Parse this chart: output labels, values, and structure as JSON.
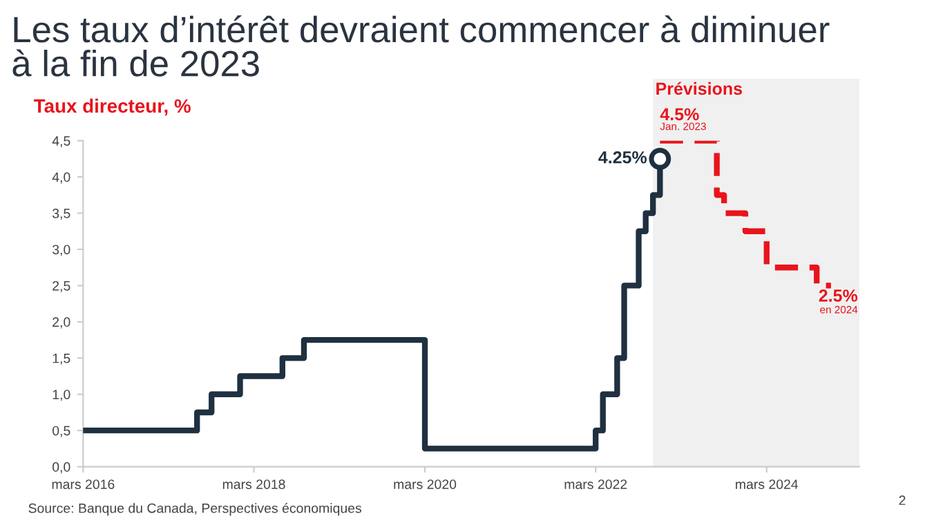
{
  "chart_data": {
    "type": "step",
    "title": "Les taux d’intérêt devraient commencer à diminuer\nà la fin de 2023",
    "ylabel": "Taux directeur, %",
    "series": [
      {
        "color": "#1f3040",
        "x": [
          "2016-03",
          "2017-07",
          "2017-09",
          "2018-01",
          "2018-07",
          "2018-10",
          "2020-03",
          "2022-03",
          "2022-04",
          "2022-06",
          "2022-07",
          "2022-09",
          "2022-10",
          "2022-11",
          "2022-12"
        ],
        "values": [
          0.5,
          0.75,
          1.0,
          1.25,
          1.5,
          1.75,
          0.25,
          0.5,
          1.0,
          1.5,
          2.5,
          3.25,
          3.5,
          3.75,
          4.25
        ]
      },
      {
        "type": "scatter",
        "color": "#1f3040",
        "marker": "circle",
        "x": [
          "2022-12"
        ],
        "values": [
          4.25
        ],
        "value_labels": [
          "4.25%"
        ]
      },
      {
        "color": "#e8141c",
        "line_style": "dashed",
        "x": [
          "2022-12",
          "2023-08",
          "2023-09",
          "2023-12",
          "2024-03",
          "2024-10",
          "2024-12"
        ],
        "values": [
          4.5,
          3.75,
          3.5,
          3.25,
          2.75,
          2.5,
          2.5
        ]
      }
    ],
    "bands": [
      {
        "axis": "x",
        "from": "2022-11",
        "to": "2025-04",
        "label": "Prévisions",
        "color": "#f0f0f0"
      }
    ],
    "annotations": [
      {
        "text": "4.5%",
        "x": "2022-12",
        "y": 4.5
      },
      {
        "text": "Jan. 2023",
        "x": "2022-12",
        "y": 4.5
      },
      {
        "text": "2.5%",
        "x": "2024-12",
        "y": 2.5
      },
      {
        "text": "en 2024",
        "x": "2024-12",
        "y": 2.5
      },
      "Source: Banque du Canada, Perspectives économiques",
      "2"
    ],
    "xlim": [
      "2016-03",
      "2025-04"
    ],
    "xticks": [
      {
        "value": "2016-03",
        "label": "mars 2016"
      },
      {
        "value": "2018-03",
        "label": "mars 2018"
      },
      {
        "value": "2020-03",
        "label": "mars 2020"
      },
      {
        "value": "2022-03",
        "label": "mars 2022"
      },
      {
        "value": "2024-03",
        "label": "mars 2024"
      }
    ],
    "ylim": [
      0,
      4.5
    ],
    "yticks": [
      {
        "value": 0,
        "label": "0,0"
      },
      {
        "value": 0.5,
        "label": "0,5"
      },
      {
        "value": 1,
        "label": "1,0"
      },
      {
        "value": 1.5,
        "label": "1,5"
      },
      {
        "value": 2,
        "label": "2,0"
      },
      {
        "value": 2.5,
        "label": "2,5"
      },
      {
        "value": 3,
        "label": "3,0"
      },
      {
        "value": 3.5,
        "label": "3,5"
      },
      {
        "value": 4,
        "label": "4,0"
      },
      {
        "value": 4.5,
        "label": "4,5"
      }
    ],
    "grid": false,
    "legend": false
  }
}
